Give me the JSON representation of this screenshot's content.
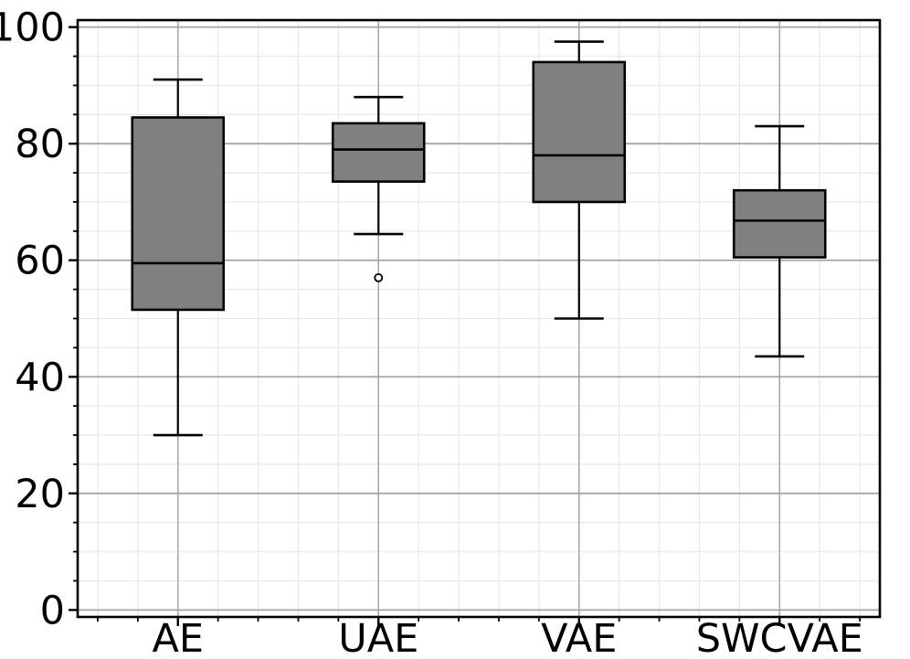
{
  "chart_data": {
    "type": "boxplot",
    "title": "",
    "xlabel": "",
    "ylabel": "",
    "categories": [
      "AE",
      "UAE",
      "VAE",
      "SWCVAE"
    ],
    "series": [
      {
        "name": "AE",
        "whisker_low": 30,
        "q1": 51.5,
        "median": 59.5,
        "q3": 84.5,
        "whisker_high": 91,
        "outliers": []
      },
      {
        "name": "UAE",
        "whisker_low": 64.5,
        "q1": 73.5,
        "median": 79,
        "q3": 83.5,
        "whisker_high": 88,
        "outliers": [
          57
        ]
      },
      {
        "name": "VAE",
        "whisker_low": 50,
        "q1": 70,
        "median": 78,
        "q3": 94,
        "whisker_high": 97.5,
        "outliers": []
      },
      {
        "name": "SWCVAE",
        "whisker_low": 43.5,
        "q1": 60.5,
        "median": 66.8,
        "q3": 72,
        "whisker_high": 83,
        "outliers": []
      }
    ],
    "y_major_ticks": [
      0,
      20,
      40,
      60,
      80,
      100
    ],
    "y_tick_labels": [
      "0",
      "20",
      "40",
      "60",
      "80",
      "100"
    ],
    "y_minor_step": 5,
    "x_minor_step": 0.2,
    "ylim": [
      -1.2,
      101.2
    ],
    "xlim": [
      0.5,
      4.5
    ],
    "grid": "major-and-minor",
    "legend": "none",
    "colors": {
      "box_fill": "#808080",
      "box_edge": "#000000",
      "median": "#000000",
      "whisker": "#000000",
      "outlier_edge": "#000000",
      "outlier_fill": "#ffffff",
      "grid_major": "#a5a5a5",
      "grid_minor": "#e9e9e9",
      "spine": "#000000",
      "background": "#ffffff"
    }
  }
}
